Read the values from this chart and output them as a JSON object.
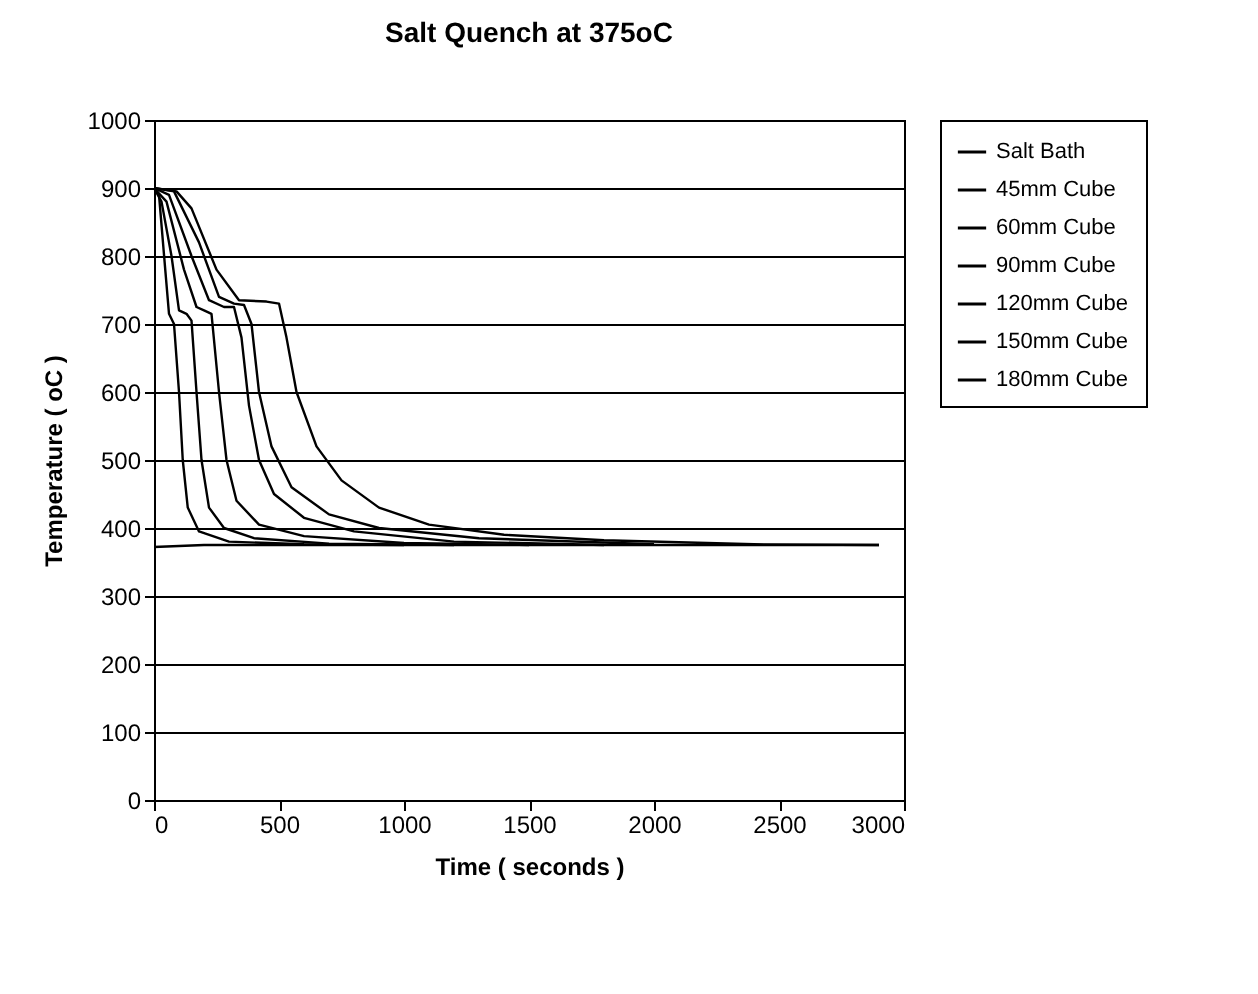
{
  "chart_data": {
    "type": "line",
    "title": "Salt Quench at 375oC",
    "xlabel": "Time ( seconds )",
    "ylabel": "Temperature ( oC )",
    "xlim": [
      0,
      3000
    ],
    "xticks": [
      0,
      500,
      1000,
      1500,
      2000,
      2500,
      3000
    ],
    "ylim": [
      0,
      1000
    ],
    "yticks": [
      0,
      100,
      200,
      300,
      400,
      500,
      600,
      700,
      800,
      900,
      1000
    ],
    "grid": "y",
    "legend": "right",
    "marker": "none",
    "line_style": "solid",
    "series": [
      {
        "name": "Salt Bath",
        "color": "#000000",
        "x": [
          0,
          200,
          500,
          1000,
          1500,
          2000,
          2500,
          2900
        ],
        "values": [
          372,
          375,
          375,
          375,
          375,
          375,
          375,
          375
        ]
      },
      {
        "name": "45mm Cube",
        "color": "#000000",
        "x": [
          0,
          20,
          45,
          60,
          80,
          100,
          115,
          135,
          180,
          300,
          600,
          1000
        ],
        "values": [
          900,
          890,
          780,
          715,
          700,
          600,
          500,
          430,
          395,
          380,
          376,
          375
        ]
      },
      {
        "name": "60mm Cube",
        "color": "#000000",
        "x": [
          0,
          30,
          70,
          100,
          130,
          150,
          170,
          190,
          220,
          280,
          400,
          700,
          1200
        ],
        "values": [
          900,
          880,
          800,
          720,
          715,
          705,
          600,
          500,
          430,
          400,
          385,
          377,
          375
        ]
      },
      {
        "name": "90mm Cube",
        "color": "#000000",
        "x": [
          0,
          50,
          120,
          170,
          200,
          230,
          260,
          290,
          330,
          420,
          600,
          1000,
          1500
        ],
        "values": [
          900,
          880,
          780,
          725,
          720,
          715,
          600,
          500,
          440,
          405,
          388,
          378,
          375
        ]
      },
      {
        "name": "120mm Cube",
        "color": "#000000",
        "x": [
          0,
          60,
          150,
          220,
          280,
          320,
          350,
          380,
          420,
          480,
          600,
          800,
          1200,
          1800
        ],
        "values": [
          900,
          890,
          800,
          735,
          725,
          725,
          680,
          580,
          500,
          450,
          415,
          395,
          380,
          375
        ]
      },
      {
        "name": "150mm Cube",
        "color": "#000000",
        "x": [
          0,
          80,
          180,
          260,
          320,
          360,
          390,
          420,
          470,
          550,
          700,
          900,
          1300,
          2000
        ],
        "values": [
          900,
          895,
          820,
          740,
          730,
          728,
          700,
          600,
          520,
          460,
          420,
          400,
          385,
          376
        ]
      },
      {
        "name": "180mm Cube",
        "color": "#000000",
        "x": [
          0,
          90,
          150,
          250,
          340,
          450,
          500,
          530,
          570,
          650,
          750,
          900,
          1100,
          1400,
          1800,
          2400,
          2900
        ],
        "values": [
          900,
          895,
          870,
          780,
          735,
          733,
          730,
          680,
          600,
          520,
          470,
          430,
          405,
          390,
          382,
          376,
          375
        ]
      }
    ]
  }
}
